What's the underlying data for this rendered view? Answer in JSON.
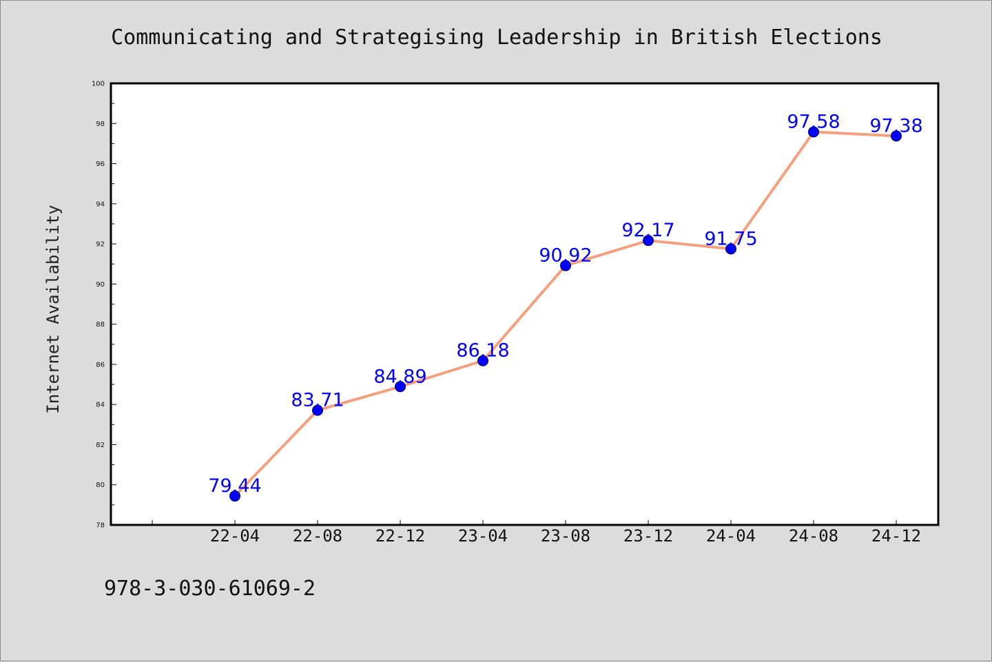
{
  "chart_data": {
    "type": "line",
    "title": "Communicating and Strategising Leadership in British Elections",
    "xlabel": "",
    "ylabel": "Internet Availability",
    "categories": [
      "22-04",
      "22-08",
      "22-12",
      "23-04",
      "23-08",
      "23-12",
      "24-04",
      "24-08",
      "24-12"
    ],
    "series": [
      {
        "values": [
          79.44,
          83.71,
          84.89,
          86.18,
          90.92,
          92.17,
          91.75,
          97.58,
          97.38
        ]
      }
    ],
    "data_labels": [
      "79.44",
      "83.71",
      "84.89",
      "86.18",
      "90.92",
      "92.17",
      "91.75",
      "97.58",
      "97.38"
    ],
    "ylim": [
      78,
      100
    ],
    "yticks": [
      "78",
      "80",
      "82",
      "84",
      "86",
      "88",
      "90",
      "92",
      "94",
      "96",
      "98",
      "100"
    ],
    "grid": false,
    "line_color": "#f4a07e",
    "marker_color": "#0000ff",
    "label_color": "#0000ff",
    "background_color": "#dcdcdc",
    "plot_background_color": "#ffffff"
  },
  "footer": {
    "isbn": "978-3-030-61069-2"
  }
}
